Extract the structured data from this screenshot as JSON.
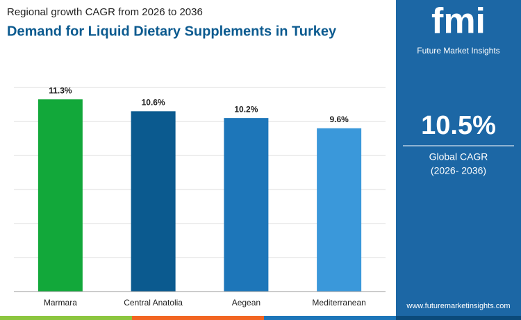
{
  "chart_data": {
    "type": "bar",
    "subtitle": "Regional growth CAGR from 2026 to 2036",
    "title": "Demand for Liquid Dietary Supplements in Turkey",
    "categories": [
      "Marmara",
      "Central Anatolia",
      "Aegean",
      "Mediterranean"
    ],
    "values": [
      11.3,
      10.6,
      10.2,
      9.6
    ],
    "value_labels": [
      "11.3%",
      "10.6%",
      "10.2%",
      "9.6%"
    ],
    "colors": [
      "#12a83a",
      "#0b5a8f",
      "#1d76b9",
      "#3a98da"
    ],
    "ylim": [
      0,
      12
    ],
    "yticks": [
      0,
      2,
      4,
      6,
      8,
      10,
      12
    ],
    "grid": true
  },
  "side_panel": {
    "logo": "fmi",
    "brand": "Future Market Insights",
    "headline_value": "10.5%",
    "headline_label": "Global CAGR",
    "period": "(2026- 2036)",
    "website": "www.futuremarketinsights.com"
  }
}
